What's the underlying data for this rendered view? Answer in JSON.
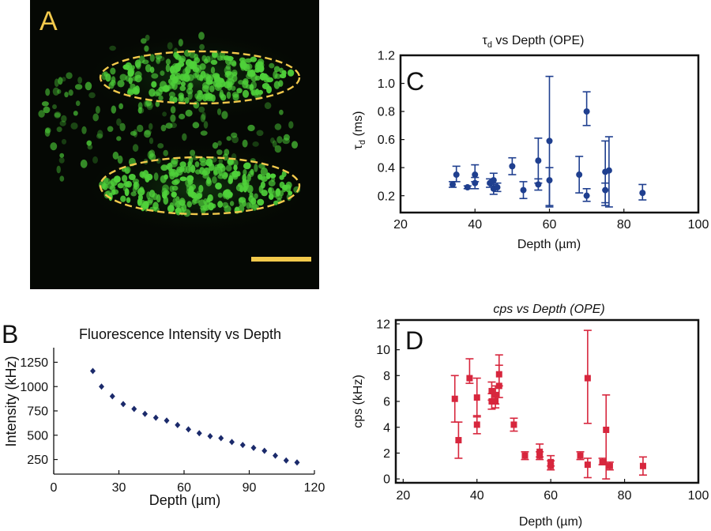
{
  "panels": {
    "A": {
      "letter": "A",
      "colors": {
        "background": "#050804",
        "cells": "#4fd13a",
        "outline": "#f2c94c",
        "scale_bar": "#f2c94c"
      }
    },
    "B": {
      "letter": "B"
    },
    "C": {
      "letter": "C"
    },
    "D": {
      "letter": "D"
    }
  },
  "chart_data": [
    {
      "panel": "B",
      "type": "scatter",
      "title": "Fluorescence Intensity vs Depth",
      "xlabel": "Depth (µm)",
      "ylabel": "Intensity (kHz)",
      "xlim": [
        0,
        120
      ],
      "ylim": [
        100,
        1400
      ],
      "xticks": [
        0,
        30,
        60,
        90,
        120
      ],
      "yticks": [
        250,
        500,
        750,
        1000,
        1250
      ],
      "color": "#1b2a6b",
      "marker": "diamond",
      "frame": "left-bottom",
      "series": [
        {
          "x": [
            18,
            22,
            27,
            32,
            37,
            42,
            47,
            52,
            57,
            62,
            67,
            72,
            77,
            82,
            87,
            92,
            97,
            102,
            107,
            112
          ],
          "y": [
            1160,
            1000,
            900,
            820,
            770,
            720,
            680,
            650,
            605,
            560,
            520,
            490,
            470,
            430,
            400,
            370,
            340,
            290,
            240,
            220
          ]
        }
      ]
    },
    {
      "panel": "C",
      "type": "scatter",
      "title_main": "τ",
      "title_sub": "d",
      "title_rest": " vs Depth (OPE)",
      "xlabel": "Depth (µm)",
      "ylabel_main": "τ",
      "ylabel_sub": "d",
      "ylabel_rest": " (ms)",
      "xlim": [
        20,
        100
      ],
      "ylim": [
        0.08,
        1.2
      ],
      "xticks": [
        20,
        40,
        60,
        80,
        100
      ],
      "yticks": [
        0.2,
        0.4,
        0.6,
        0.8,
        1.0,
        1.2
      ],
      "ytick_labels": [
        "0.2",
        "0.4",
        "0.6",
        "0.8",
        "1.0",
        "1.2"
      ],
      "color": "#1f3f8f",
      "marker": "circle",
      "frame": "box",
      "series": [
        {
          "x": [
            34,
            35,
            38,
            40,
            40,
            44,
            45,
            45,
            46,
            50,
            53,
            57,
            57,
            60,
            60,
            68,
            70,
            70,
            75,
            75,
            76,
            85
          ],
          "y": [
            0.28,
            0.35,
            0.26,
            0.35,
            0.29,
            0.29,
            0.25,
            0.31,
            0.26,
            0.41,
            0.24,
            0.45,
            0.28,
            0.59,
            0.31,
            0.35,
            0.8,
            0.2,
            0.37,
            0.24,
            0.38,
            0.22
          ],
          "err_lo": [
            0.02,
            0.05,
            0.01,
            0.05,
            0.04,
            0.03,
            0.04,
            0.04,
            0.03,
            0.06,
            0.06,
            0.16,
            0.04,
            0.46,
            0.19,
            0.13,
            0.1,
            0.04,
            0.24,
            0.09,
            0.26,
            0.05
          ],
          "err_hi": [
            0.02,
            0.06,
            0.01,
            0.07,
            0.04,
            0.03,
            0.03,
            0.05,
            0.03,
            0.06,
            0.06,
            0.16,
            0.04,
            0.46,
            0.09,
            0.13,
            0.14,
            0.05,
            0.22,
            0.05,
            0.24,
            0.06
          ]
        }
      ]
    },
    {
      "panel": "D",
      "type": "scatter",
      "title": "cps vs Depth (OPE)",
      "xlabel": "Depth (µm)",
      "ylabel": "cps (kHz)",
      "xlim": [
        18,
        100
      ],
      "ylim": [
        -0.3,
        12.3
      ],
      "xticks": [
        20,
        40,
        60,
        80,
        100
      ],
      "yticks": [
        0,
        2,
        4,
        6,
        8,
        10,
        12
      ],
      "color": "#d7263d",
      "marker": "square",
      "frame": "box",
      "series": [
        {
          "x": [
            34,
            35,
            38,
            40,
            40,
            44,
            44,
            45,
            45,
            46,
            46,
            50,
            53,
            57,
            57,
            60,
            60,
            68,
            70,
            70,
            74,
            75,
            76,
            85
          ],
          "y": [
            6.2,
            3.0,
            7.8,
            6.3,
            4.2,
            6.0,
            6.8,
            6.0,
            6.5,
            7.2,
            8.1,
            4.2,
            1.8,
            2.1,
            1.8,
            1.3,
            1.0,
            1.8,
            7.8,
            1.1,
            1.3,
            3.8,
            1.0,
            1.0
          ],
          "err_lo": [
            1.8,
            1.4,
            0.4,
            1.5,
            0.7,
            0.6,
            0.7,
            0.5,
            0.7,
            0.9,
            0.9,
            0.5,
            0.3,
            0.4,
            0.3,
            0.3,
            0.3,
            0.3,
            3.5,
            1.0,
            0.2,
            3.8,
            0.3,
            0.7
          ],
          "err_hi": [
            1.8,
            1.4,
            1.5,
            1.5,
            0.7,
            0.6,
            0.7,
            0.5,
            0.7,
            1.6,
            1.5,
            0.5,
            0.3,
            0.6,
            0.3,
            0.5,
            0.4,
            0.3,
            3.7,
            0.5,
            0.3,
            2.7,
            0.3,
            0.7
          ]
        }
      ]
    }
  ]
}
